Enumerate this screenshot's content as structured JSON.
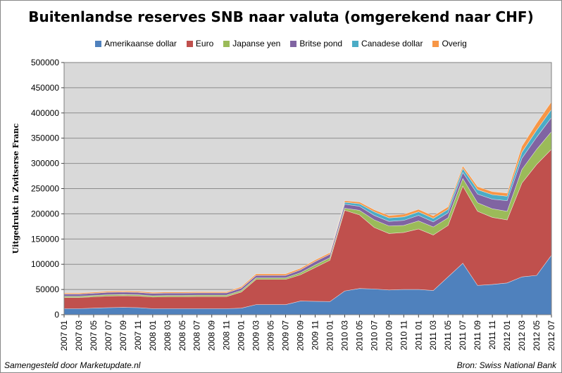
{
  "chart_data": {
    "type": "area",
    "stacked": true,
    "title": "Buitenlandse reserves SNB naar valuta (omgerekend naar CHF)",
    "ylabel": "Uitgedrukt in Zwitserse Franc",
    "xlabel": "",
    "ylim": [
      0,
      500000
    ],
    "yticks": [
      "0",
      "50000",
      "100000",
      "150000",
      "200000",
      "250000",
      "300000",
      "350000",
      "400000",
      "450000",
      "500000"
    ],
    "grid": true,
    "legend_position": "top",
    "categories": [
      "2007 01",
      "2007 03",
      "2007 05",
      "2007 07",
      "2007 09",
      "2007 11",
      "2008 01",
      "2008 03",
      "2008 05",
      "2008 07",
      "2008 09",
      "2008 11",
      "2009 01",
      "2009 03",
      "2009 05",
      "2009 07",
      "2009 09",
      "2009 11",
      "2010 01",
      "2010 03",
      "2010 05",
      "2010 07",
      "2010 09",
      "2010 11",
      "2011 01",
      "2011 03",
      "2011 05",
      "2011 07",
      "2011 09",
      "2011 11",
      "2012 01",
      "2012 03",
      "2012 05",
      "2012 07"
    ],
    "series": [
      {
        "name": "Amerikaanse dollar",
        "color": "#4F81BD",
        "values": [
          12000,
          12000,
          13000,
          14000,
          14500,
          14000,
          12000,
          12000,
          12000,
          12000,
          12000,
          12000,
          13000,
          20000,
          20000,
          20000,
          27000,
          26500,
          26000,
          47000,
          52000,
          51000,
          49000,
          50000,
          50000,
          48000,
          75000,
          102000,
          58000,
          60000,
          63000,
          75000,
          78000,
          118000
        ]
      },
      {
        "name": "Euro",
        "color": "#C0504D",
        "values": [
          22000,
          22000,
          22500,
          23000,
          23000,
          23000,
          23000,
          23500,
          23500,
          24000,
          24000,
          24000,
          32000,
          50000,
          50000,
          50000,
          52000,
          67000,
          82000,
          160000,
          146000,
          122000,
          112000,
          113000,
          120000,
          110000,
          102000,
          153000,
          147000,
          133000,
          125000,
          186000,
          220000,
          210000
        ]
      },
      {
        "name": "Japanse yen",
        "color": "#9BBB59",
        "values": [
          2500,
          2500,
          2600,
          2700,
          2700,
          2600,
          2600,
          2700,
          2700,
          2700,
          2700,
          2700,
          3000,
          3000,
          3000,
          3000,
          4000,
          5000,
          5000,
          4000,
          9000,
          15000,
          15000,
          14000,
          16000,
          16000,
          15000,
          15000,
          17000,
          17000,
          17000,
          27000,
          30000,
          35000
        ]
      },
      {
        "name": "Britse pond",
        "color": "#8064A2",
        "values": [
          4500,
          4500,
          4600,
          4700,
          4800,
          4700,
          4700,
          4800,
          4800,
          4800,
          4700,
          4700,
          5000,
          5000,
          5000,
          5000,
          6000,
          7000,
          7000,
          8000,
          8000,
          9000,
          9000,
          10000,
          11000,
          10000,
          10000,
          12000,
          17000,
          19000,
          21000,
          22000,
          24000,
          28000
        ]
      },
      {
        "name": "Canadese dollar",
        "color": "#4BACC6",
        "values": [
          0,
          0,
          0,
          0,
          0,
          0,
          0,
          0,
          0,
          0,
          0,
          0,
          0,
          0,
          0,
          0,
          0,
          0,
          0,
          4000,
          5000,
          7000,
          7000,
          7000,
          7000,
          7000,
          7000,
          8000,
          9000,
          9000,
          9000,
          12000,
          14000,
          16000
        ]
      },
      {
        "name": "Overig",
        "color": "#F79646",
        "values": [
          2000,
          2000,
          2000,
          2000,
          2000,
          2000,
          2000,
          2000,
          2000,
          2000,
          2000,
          2000,
          2500,
          3000,
          3000,
          3000,
          3000,
          3000,
          3000,
          3000,
          3500,
          4000,
          4500,
          5000,
          5000,
          5000,
          5000,
          5000,
          6000,
          6000,
          6000,
          12000,
          14000,
          15000
        ]
      }
    ]
  },
  "footer": {
    "left": "Samengesteld door Marketupdate.nl",
    "right": "Bron: Swiss National Bank"
  }
}
